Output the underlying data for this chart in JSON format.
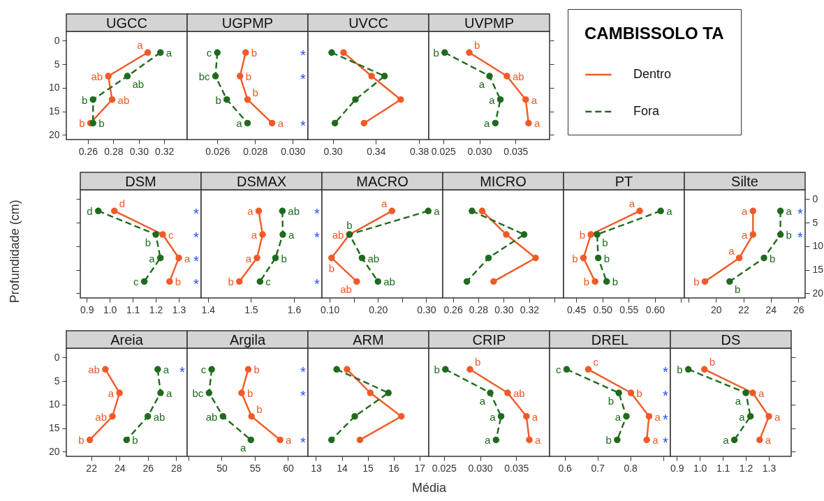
{
  "chart_data": [
    {
      "type": "line",
      "title": "UGCC",
      "orientation": "horizontal",
      "marker": "circle",
      "legend": "right",
      "legend_title": "CAMBISSOLO TA",
      "x": [
        2.5,
        7.5,
        12.5,
        17.5
      ],
      "xlim": [
        0.243,
        0.338
      ],
      "xticks": [
        0.26,
        0.28,
        {
          "value": 0.3,
          "label": "0.30"
        },
        0.32
      ],
      "ylim": [
        21,
        -2
      ],
      "yticks": [
        0,
        5,
        10,
        15,
        20
      ],
      "series": [
        {
          "name": "Dentro",
          "color": "#f05a28",
          "line_style": "solid",
          "values": [
            0.307,
            0.276,
            0.279,
            0.262
          ],
          "value_labels": [
            "a",
            "ab",
            "ab",
            "b"
          ]
        },
        {
          "name": "Fora",
          "color": "#1e6b1e",
          "line_style": "dashed",
          "values": [
            0.317,
            0.291,
            0.264,
            0.264
          ],
          "value_labels": [
            "a",
            "ab",
            "b",
            "b"
          ]
        }
      ]
    },
    {
      "type": "line",
      "title": "UGPMP",
      "orientation": "horizontal",
      "marker": "circle",
      "tick_labels": "x",
      "x": [
        2.5,
        7.5,
        12.5,
        17.5
      ],
      "xlim": [
        0.0244,
        0.0308
      ],
      "xticks": [
        0.026,
        0.028,
        {
          "value": 0.03,
          "label": "0.030"
        }
      ],
      "ylim": [
        21,
        -2
      ],
      "series": [
        {
          "color": "#f05a28",
          "line_style": "solid",
          "values": [
            0.0275,
            0.0272,
            0.0276,
            0.0289
          ],
          "value_labels": [
            "b",
            "b",
            "b",
            "a"
          ]
        },
        {
          "color": "#1e6b1e",
          "line_style": "dashed",
          "values": [
            0.026,
            0.0259,
            0.0265,
            0.0276
          ],
          "value_labels": [
            "c",
            "bc",
            "b",
            "a"
          ]
        }
      ],
      "annotations": [
        "*",
        "*",
        null,
        "*"
      ]
    },
    {
      "type": "line",
      "title": "UVCC",
      "orientation": "horizontal",
      "marker": "circle",
      "tick_labels": "x",
      "x": [
        2.5,
        7.5,
        12.5,
        17.5
      ],
      "xlim": [
        0.277,
        0.389
      ],
      "xticks": [
        {
          "value": 0.3,
          "label": "0.30"
        },
        0.34,
        0.38
      ],
      "ylim": [
        21,
        -2
      ],
      "series": [
        {
          "color": "#f05a28",
          "line_style": "solid",
          "values": [
            0.31,
            0.336,
            0.363,
            0.329
          ]
        },
        {
          "color": "#1e6b1e",
          "line_style": "dashed",
          "values": [
            0.299,
            0.348,
            0.321,
            0.302
          ]
        }
      ]
    },
    {
      "type": "line",
      "title": "UVPMP",
      "orientation": "horizontal",
      "marker": "circle",
      "tick_labels": "x",
      "x": [
        2.5,
        7.5,
        12.5,
        17.5
      ],
      "xlim": [
        0.023,
        0.0397
      ],
      "xticks": [
        0.025,
        {
          "value": 0.03,
          "label": "0.030"
        },
        0.035
      ],
      "ylim": [
        21,
        -2
      ],
      "yticks": [
        0,
        5,
        10,
        15,
        20
      ],
      "series": [
        {
          "color": "#f05a28",
          "line_style": "solid",
          "values": [
            0.0286,
            0.0338,
            0.0364,
            0.0368
          ],
          "value_labels": [
            "b",
            "ab",
            "a",
            "a"
          ]
        },
        {
          "color": "#1e6b1e",
          "line_style": "dashed",
          "values": [
            0.0252,
            0.0314,
            0.0329,
            0.0322
          ],
          "value_labels": [
            "b",
            "a",
            "a",
            "a"
          ]
        }
      ]
    },
    {
      "type": "line",
      "title": "DSM",
      "orientation": "horizontal",
      "marker": "circle",
      "tick_labels": "x",
      "ylabel": "Profundidade (cm)",
      "x": [
        2.5,
        7.5,
        12.5,
        17.5
      ],
      "xlim": [
        0.872,
        1.397
      ],
      "xticks": [
        0.9,
        {
          "value": 1,
          "label": "1.0"
        },
        1.1,
        1.2,
        1.3
      ],
      "ylim": [
        21,
        -2
      ],
      "yticks": [
        0,
        5,
        10,
        15,
        20
      ],
      "series": [
        {
          "color": "#f05a28",
          "line_style": "solid",
          "values": [
            1.02,
            1.23,
            1.3,
            1.26
          ],
          "value_labels": [
            "d",
            "c",
            "a",
            "b"
          ]
        },
        {
          "color": "#1e6b1e",
          "line_style": "dashed",
          "values": [
            0.95,
            1.2,
            1.22,
            1.15
          ],
          "value_labels": [
            "d",
            "b",
            "a",
            "c"
          ]
        }
      ],
      "annotations": [
        "*",
        "*",
        "*",
        "*"
      ]
    },
    {
      "type": "line",
      "title": "DSMAX",
      "orientation": "horizontal",
      "marker": "circle",
      "tick_labels": "x",
      "x": [
        2.5,
        7.5,
        12.5,
        17.5
      ],
      "xlim": [
        1.384,
        1.665
      ],
      "xticks": [
        1.4,
        1.5,
        1.6
      ],
      "ylim": [
        21,
        -2
      ],
      "series": [
        {
          "color": "#f05a28",
          "line_style": "solid",
          "values": [
            1.518,
            1.527,
            1.514,
            1.473
          ],
          "value_labels": [
            "a",
            "a",
            "a",
            "b"
          ]
        },
        {
          "color": "#1e6b1e",
          "line_style": "dashed",
          "values": [
            1.573,
            1.574,
            1.557,
            1.521
          ],
          "value_labels": [
            "ab",
            "a",
            "b",
            "c"
          ]
        }
      ],
      "annotations": [
        "*",
        "*",
        null,
        "*"
      ]
    },
    {
      "type": "line",
      "title": "MACRO",
      "orientation": "horizontal",
      "marker": "circle",
      "tick_labels": "x",
      "x": [
        2.5,
        7.5,
        12.5,
        17.5
      ],
      "xlim": [
        0.084,
        0.334
      ],
      "xticks": [
        {
          "value": 0.1,
          "label": "0.10"
        },
        {
          "value": 0.15,
          "label": null
        },
        {
          "value": 0.2,
          "label": "0.20"
        },
        {
          "value": 0.25,
          "label": null
        },
        {
          "value": 0.3,
          "label": "0.30"
        }
      ],
      "ylim": [
        21,
        -2
      ],
      "series": [
        {
          "color": "#f05a28",
          "line_style": "solid",
          "values": [
            0.229,
            0.141,
            0.104,
            0.156
          ],
          "value_labels": [
            "a",
            "ab",
            "b",
            "ab"
          ]
        },
        {
          "color": "#1e6b1e",
          "line_style": "dashed",
          "values": [
            0.304,
            0.141,
            0.167,
            0.2
          ],
          "value_labels": [
            "a",
            "b",
            "ab",
            "ab"
          ]
        }
      ]
    },
    {
      "type": "line",
      "title": "MICRO",
      "orientation": "horizontal",
      "marker": "circle",
      "tick_labels": "x",
      "x": [
        2.5,
        7.5,
        12.5,
        17.5
      ],
      "xlim": [
        0.252,
        0.347
      ],
      "xticks": [
        0.26,
        0.28,
        {
          "value": 0.3,
          "label": "0.30"
        },
        0.32,
        {
          "value": 0.34,
          "label": null
        }
      ],
      "ylim": [
        21,
        -2
      ],
      "series": [
        {
          "color": "#f05a28",
          "line_style": "solid",
          "values": [
            0.283,
            0.302,
            0.325,
            0.292
          ]
        },
        {
          "color": "#1e6b1e",
          "line_style": "dashed",
          "values": [
            0.275,
            0.316,
            0.288,
            0.271
          ]
        }
      ]
    },
    {
      "type": "line",
      "title": "PT",
      "orientation": "horizontal",
      "marker": "circle",
      "tick_labels": "x",
      "x": [
        2.5,
        7.5,
        12.5,
        17.5
      ],
      "xlim": [
        0.426,
        0.656
      ],
      "xticks": [
        0.45,
        {
          "value": 0.5,
          "label": "0.50"
        },
        0.55,
        {
          "value": 0.6,
          "label": "0.60"
        },
        {
          "value": 0.65,
          "label": null
        }
      ],
      "ylim": [
        21,
        -2
      ],
      "series": [
        {
          "color": "#f05a28",
          "line_style": "solid",
          "values": [
            0.571,
            0.478,
            0.464,
            0.486
          ],
          "value_labels": [
            "a",
            "b",
            "b",
            "b"
          ]
        },
        {
          "color": "#1e6b1e",
          "line_style": "dashed",
          "values": [
            0.611,
            0.49,
            0.492,
            0.508
          ],
          "value_labels": [
            "a",
            "b",
            "b",
            "b"
          ]
        }
      ]
    },
    {
      "type": "line",
      "title": "Silte",
      "orientation": "horizontal",
      "marker": "circle",
      "x": [
        2.5,
        7.5,
        12.5,
        17.5
      ],
      "xlim": [
        17.7,
        26.5
      ],
      "xticks": [
        {
          "value": 18,
          "label": null
        },
        20,
        22,
        24,
        26
      ],
      "ylim": [
        21,
        -2
      ],
      "yticks": [
        0,
        5,
        10,
        15,
        20
      ],
      "series": [
        {
          "color": "#f05a28",
          "line_style": "solid",
          "values": [
            22.7,
            22.7,
            21.7,
            19.2
          ],
          "value_labels": [
            "a",
            "a",
            "a",
            "b"
          ]
        },
        {
          "color": "#1e6b1e",
          "line_style": "dashed",
          "values": [
            24.7,
            24.7,
            23.5,
            21.0
          ],
          "value_labels": [
            "a",
            "b",
            "b",
            "b"
          ]
        }
      ],
      "annotations": [
        "*",
        "*",
        null,
        null
      ]
    },
    {
      "type": "line",
      "title": "Areia",
      "orientation": "horizontal",
      "marker": "circle",
      "x": [
        2.5,
        7.5,
        12.5,
        17.5
      ],
      "xlim": [
        20.24,
        28.78
      ],
      "xticks": [
        22,
        24,
        26,
        28
      ],
      "ylim": [
        21,
        -2
      ],
      "yticks": [
        0,
        5,
        10,
        15,
        20
      ],
      "series": [
        {
          "color": "#f05a28",
          "line_style": "solid",
          "values": [
            23.0,
            24.0,
            23.5,
            21.9
          ],
          "value_labels": [
            "ab",
            "a",
            "ab",
            "b"
          ]
        },
        {
          "color": "#1e6b1e",
          "line_style": "dashed",
          "values": [
            26.7,
            26.9,
            26.0,
            24.5
          ],
          "value_labels": [
            "a",
            "a",
            "ab",
            "b"
          ]
        }
      ],
      "annotations": [
        "*",
        null,
        null,
        null
      ]
    },
    {
      "type": "line",
      "title": "Argila",
      "orientation": "horizontal",
      "marker": "circle",
      "tick_labels": "x",
      "x": [
        2.5,
        7.5,
        12.5,
        17.5
      ],
      "xlim": [
        44.8,
        63.0
      ],
      "xticks": [
        {
          "value": 45,
          "label": null
        },
        50,
        55,
        60
      ],
      "ylim": [
        21,
        -2
      ],
      "series": [
        {
          "color": "#f05a28",
          "line_style": "solid",
          "values": [
            54.0,
            53.0,
            54.5,
            58.8
          ],
          "value_labels": [
            "b",
            "b",
            "b",
            "a"
          ]
        },
        {
          "color": "#1e6b1e",
          "line_style": "dashed",
          "values": [
            48.5,
            48.1,
            50.2,
            54.4
          ],
          "value_labels": [
            "c",
            "bc",
            "ab",
            "a"
          ]
        }
      ],
      "annotations": [
        "*",
        "*",
        null,
        "*"
      ]
    },
    {
      "type": "line",
      "title": "ARM",
      "orientation": "horizontal",
      "marker": "circle",
      "tick_labels": "x",
      "xlabel": "Média",
      "x": [
        2.5,
        7.5,
        12.5,
        17.5
      ],
      "xlim": [
        12.69,
        17.36
      ],
      "xticks": [
        13,
        14,
        15,
        16,
        17
      ],
      "ylim": [
        21,
        -2
      ],
      "series": [
        {
          "color": "#f05a28",
          "line_style": "solid",
          "values": [
            14.2,
            15.1,
            16.3,
            14.7
          ]
        },
        {
          "color": "#1e6b1e",
          "line_style": "dashed",
          "values": [
            13.8,
            15.8,
            14.5,
            13.6
          ]
        }
      ]
    },
    {
      "type": "line",
      "title": "CRIP",
      "orientation": "horizontal",
      "marker": "circle",
      "tick_labels": "x",
      "x": [
        2.5,
        7.5,
        12.5,
        17.5
      ],
      "xlim": [
        0.0229,
        0.0396
      ],
      "xticks": [
        0.025,
        {
          "value": 0.03,
          "label": "0.030"
        },
        0.035
      ],
      "ylim": [
        21,
        -2
      ],
      "series": [
        {
          "color": "#f05a28",
          "line_style": "solid",
          "values": [
            0.0286,
            0.0338,
            0.0364,
            0.0368
          ],
          "value_labels": [
            "b",
            "ab",
            "a",
            "a"
          ]
        },
        {
          "color": "#1e6b1e",
          "line_style": "dashed",
          "values": [
            0.0252,
            0.0314,
            0.0329,
            0.0322
          ],
          "value_labels": [
            "b",
            "a",
            "a",
            "a"
          ]
        }
      ]
    },
    {
      "type": "line",
      "title": "DREL",
      "orientation": "horizontal",
      "marker": "circle",
      "tick_labels": "x",
      "x": [
        2.5,
        7.5,
        12.5,
        17.5
      ],
      "xlim": [
        0.554,
        0.922
      ],
      "xticks": [
        0.6,
        0.7,
        0.8,
        {
          "value": 0.9,
          "label": null
        }
      ],
      "ylim": [
        21,
        -2
      ],
      "series": [
        {
          "color": "#f05a28",
          "line_style": "solid",
          "values": [
            0.672,
            0.802,
            0.857,
            0.85
          ],
          "value_labels": [
            "c",
            "b",
            "a",
            "a"
          ]
        },
        {
          "color": "#1e6b1e",
          "line_style": "dashed",
          "values": [
            0.606,
            0.765,
            0.788,
            0.76
          ],
          "value_labels": [
            "c",
            "b",
            "a",
            "b"
          ]
        }
      ],
      "annotations": [
        "*",
        "*",
        "*",
        "*"
      ]
    },
    {
      "type": "line",
      "title": "DS",
      "orientation": "horizontal",
      "marker": "circle",
      "tick_labels": "x",
      "x": [
        2.5,
        7.5,
        12.5,
        17.5
      ],
      "xlim": [
        0.872,
        1.397
      ],
      "xticks": [
        0.9,
        {
          "value": 1,
          "label": "1.0"
        },
        1.1,
        1.2,
        1.3
      ],
      "ylim": [
        21,
        -2
      ],
      "yticks": [
        0,
        5,
        10,
        15,
        20
      ],
      "series": [
        {
          "color": "#f05a28",
          "line_style": "solid",
          "values": [
            1.02,
            1.23,
            1.3,
            1.26
          ],
          "value_labels": [
            "b",
            "a",
            "a",
            "a"
          ]
        },
        {
          "color": "#1e6b1e",
          "line_style": "dashed",
          "values": [
            0.95,
            1.2,
            1.22,
            1.15
          ],
          "value_labels": [
            "b",
            "a",
            "a",
            "a"
          ]
        }
      ]
    }
  ]
}
